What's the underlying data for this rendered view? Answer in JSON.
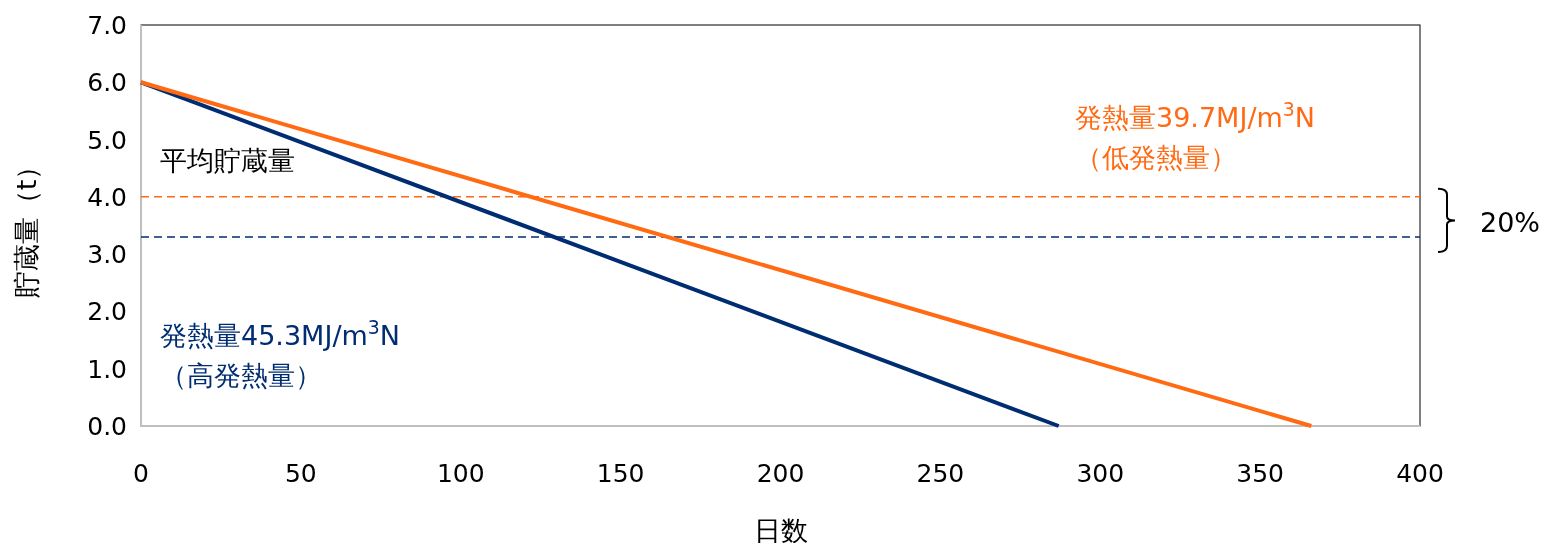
{
  "chart_data": {
    "type": "line",
    "xlabel": "日数",
    "ylabel": "貯蔵量（t）",
    "xlim": [
      0,
      400
    ],
    "xticks": [
      0,
      50,
      100,
      150,
      200,
      250,
      300,
      350,
      400
    ],
    "ylim": [
      0,
      7
    ],
    "yticks": [
      {
        "value": 0,
        "label": "0.0"
      },
      {
        "value": 1,
        "label": "1.0"
      },
      {
        "value": 2,
        "label": "2.0"
      },
      {
        "value": 3,
        "label": "3.0"
      },
      {
        "value": 4,
        "label": "4.0"
      },
      {
        "value": 5,
        "label": "5.0"
      },
      {
        "value": 6,
        "label": "6.0"
      },
      {
        "value": 7,
        "label": "7.0"
      }
    ],
    "series": [
      {
        "name": "発熱量45.3MJ/m$^{3}$N",
        "color": "#002d72",
        "x": [
          0,
          287
        ],
        "values": [
          6,
          0
        ]
      },
      {
        "name": "発熱量39.7MJ/m$^{3}$N",
        "color": "#ff6a13",
        "x": [
          0,
          366
        ],
        "values": [
          6,
          0
        ]
      }
    ],
    "ref_lines": [
      {
        "axis": "y",
        "value": 4.0,
        "color": "#ff6a13",
        "line_style": "dashed"
      },
      {
        "axis": "y",
        "value": 3.3,
        "color": "#002d72",
        "line_style": "dashed"
      }
    ],
    "annotations": [
      "（高発熱量）",
      "（低発熱量）",
      "平均貯蔵量",
      "20%"
    ],
    "grid": false,
    "marker": "none",
    "line_style": "solid"
  }
}
